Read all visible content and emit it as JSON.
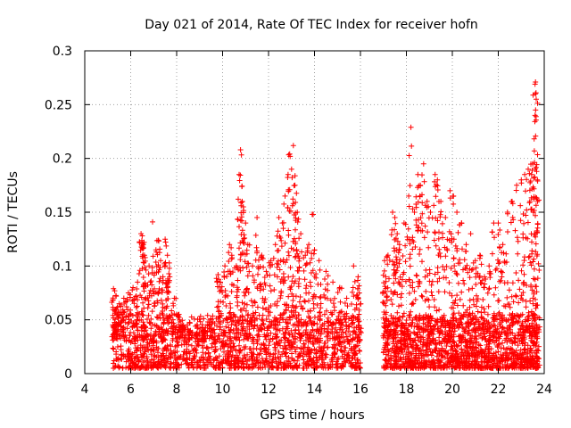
{
  "chart_data": {
    "type": "scatter",
    "title": "Day 021 of 2014, Rate Of TEC Index for receiver hofn",
    "xlabel": "GPS time / hours",
    "ylabel": "ROTI / TECUs",
    "xlim": [
      4,
      24
    ],
    "ylim": [
      0,
      0.3
    ],
    "xticks": [
      4,
      6,
      8,
      10,
      12,
      14,
      16,
      18,
      20,
      22,
      24
    ],
    "xtick_labels": [
      "4",
      "6",
      "8",
      "10",
      "12",
      "14",
      "16",
      "18",
      "20",
      "22",
      "24"
    ],
    "yticks": [
      0,
      0.05,
      0.1,
      0.15,
      0.2,
      0.25,
      0.3
    ],
    "ytick_labels": [
      "0",
      "0.05",
      "0.1",
      "0.15",
      "0.2",
      "0.25",
      "0.3"
    ],
    "grid": true,
    "marker": "+",
    "color": "#ff0000",
    "series": [
      {
        "name": "ROTI",
        "points": [
          [
            5.25,
            0.079
          ],
          [
            5.3,
            0.077
          ],
          [
            5.4,
            0.055
          ],
          [
            5.5,
            0.065
          ],
          [
            5.7,
            0.07
          ],
          [
            5.9,
            0.075
          ],
          [
            6.1,
            0.08
          ],
          [
            6.3,
            0.085
          ],
          [
            6.45,
            0.13
          ],
          [
            6.5,
            0.128
          ],
          [
            6.55,
            0.12
          ],
          [
            6.6,
            0.11
          ],
          [
            6.8,
            0.1
          ],
          [
            6.95,
            0.141
          ],
          [
            7.1,
            0.115
          ],
          [
            7.2,
            0.124
          ],
          [
            7.3,
            0.105
          ],
          [
            7.4,
            0.09
          ],
          [
            7.5,
            0.125
          ],
          [
            7.6,
            0.11
          ],
          [
            7.7,
            0.09
          ],
          [
            7.9,
            0.07
          ],
          [
            8.1,
            0.055
          ],
          [
            8.3,
            0.045
          ],
          [
            8.6,
            0.04
          ],
          [
            8.9,
            0.045
          ],
          [
            9.2,
            0.04
          ],
          [
            9.5,
            0.05
          ],
          [
            9.8,
            0.092
          ],
          [
            9.9,
            0.085
          ],
          [
            10.1,
            0.1
          ],
          [
            10.3,
            0.12
          ],
          [
            10.4,
            0.11
          ],
          [
            10.6,
            0.1
          ],
          [
            10.72,
            0.185
          ],
          [
            10.78,
            0.208
          ],
          [
            10.85,
            0.16
          ],
          [
            10.9,
            0.155
          ],
          [
            11.0,
            0.14
          ],
          [
            11.1,
            0.12
          ],
          [
            11.3,
            0.1
          ],
          [
            11.5,
            0.145
          ],
          [
            11.7,
            0.11
          ],
          [
            11.9,
            0.095
          ],
          [
            12.1,
            0.105
          ],
          [
            12.3,
            0.12
          ],
          [
            12.45,
            0.145
          ],
          [
            12.6,
            0.14
          ],
          [
            12.72,
            0.165
          ],
          [
            12.85,
            0.185
          ],
          [
            12.92,
            0.204
          ],
          [
            13.0,
            0.19
          ],
          [
            13.08,
            0.212
          ],
          [
            13.15,
            0.175
          ],
          [
            13.25,
            0.15
          ],
          [
            13.4,
            0.13
          ],
          [
            13.6,
            0.11
          ],
          [
            13.75,
            0.12
          ],
          [
            13.9,
            0.148
          ],
          [
            14.0,
            0.115
          ],
          [
            14.2,
            0.105
          ],
          [
            14.5,
            0.095
          ],
          [
            14.8,
            0.085
          ],
          [
            15.1,
            0.08
          ],
          [
            15.4,
            0.07
          ],
          [
            15.7,
            0.1
          ],
          [
            15.9,
            0.09
          ],
          [
            15.95,
            0.075
          ],
          [
            17.05,
            0.105
          ],
          [
            17.1,
            0.09
          ],
          [
            17.2,
            0.11
          ],
          [
            17.4,
            0.15
          ],
          [
            17.5,
            0.145
          ],
          [
            17.6,
            0.13
          ],
          [
            17.7,
            0.12
          ],
          [
            17.9,
            0.14
          ],
          [
            18.1,
            0.165
          ],
          [
            18.2,
            0.229
          ],
          [
            18.35,
            0.15
          ],
          [
            18.5,
            0.185
          ],
          [
            18.6,
            0.175
          ],
          [
            18.75,
            0.195
          ],
          [
            18.9,
            0.16
          ],
          [
            19.05,
            0.15
          ],
          [
            19.25,
            0.185
          ],
          [
            19.35,
            0.18
          ],
          [
            19.5,
            0.16
          ],
          [
            19.7,
            0.145
          ],
          [
            19.9,
            0.17
          ],
          [
            20.05,
            0.165
          ],
          [
            20.2,
            0.15
          ],
          [
            20.4,
            0.14
          ],
          [
            20.6,
            0.12
          ],
          [
            20.8,
            0.13
          ],
          [
            21.0,
            0.105
          ],
          [
            21.2,
            0.11
          ],
          [
            21.4,
            0.09
          ],
          [
            21.6,
            0.1
          ],
          [
            21.8,
            0.14
          ],
          [
            22.0,
            0.14
          ],
          [
            22.2,
            0.12
          ],
          [
            22.4,
            0.15
          ],
          [
            22.6,
            0.16
          ],
          [
            22.8,
            0.175
          ],
          [
            23.0,
            0.18
          ],
          [
            23.15,
            0.185
          ],
          [
            23.3,
            0.19
          ],
          [
            23.45,
            0.185
          ],
          [
            23.5,
            0.195
          ],
          [
            23.6,
            0.269
          ],
          [
            23.62,
            0.271
          ],
          [
            23.65,
            0.255
          ],
          [
            23.6,
            0.24
          ],
          [
            23.7,
            0.18
          ]
        ],
        "cloud_bands": [
          {
            "x_from": 5.2,
            "x_to": 16.0,
            "y_from": 0.0,
            "y_to": 0.05
          },
          {
            "x_from": 17.0,
            "x_to": 23.8,
            "y_from": 0.0,
            "y_to": 0.05
          }
        ]
      }
    ]
  }
}
